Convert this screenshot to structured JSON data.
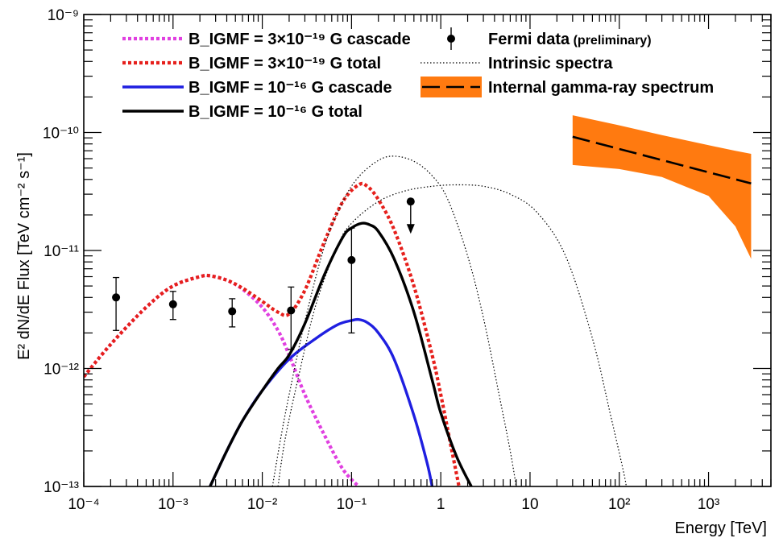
{
  "chart_data": {
    "type": "line",
    "xlabel": "Energy [TeV]",
    "ylabel": "E² dN/dE Flux [TeV cm⁻² s⁻¹]",
    "x_scale": "log",
    "y_scale": "log",
    "xlim": [
      0.0001,
      5000
    ],
    "ylim": [
      1e-13,
      1e-09
    ],
    "grid": false,
    "legend_position": "top",
    "x_tick_labels": [
      "10⁻⁴",
      "10⁻³",
      "10⁻²",
      "10⁻¹",
      "1",
      "10",
      "10²",
      "10³"
    ],
    "x_tick_values": [
      0.0001,
      0.001,
      0.01,
      0.1,
      1,
      10,
      100,
      1000
    ],
    "y_tick_labels": [
      "10⁻¹³",
      "10⁻¹²",
      "10⁻¹¹",
      "10⁻¹⁰",
      "10⁻⁹"
    ],
    "y_tick_values": [
      1e-13,
      1e-12,
      1e-11,
      1e-10,
      1e-09
    ],
    "legend": [
      {
        "label": "B_IGMF = 3×10⁻¹⁹ G cascade",
        "color": "#e040e0",
        "style": "dotted"
      },
      {
        "label": "B_IGMF = 3×10⁻¹⁹ G total",
        "color": "#e6201c",
        "style": "dotted"
      },
      {
        "label": "B_IGMF = 10⁻¹⁶ G cascade",
        "color": "#1f1fe0",
        "style": "solid"
      },
      {
        "label": "B_IGMF = 10⁻¹⁶ G total",
        "color": "#000000",
        "style": "solid"
      },
      {
        "label": "Fermi data",
        "sublabel": "(preliminary)",
        "color": "#000000",
        "style": "marker"
      },
      {
        "label": "Intrinsic spectra",
        "color": "#000000",
        "style": "fine-dotted"
      },
      {
        "label": "Internal gamma-ray spectrum",
        "color": "#000000",
        "band_color": "#ff7a10",
        "style": "dashed-band"
      }
    ],
    "series": [
      {
        "name": "B_IGMF = 3×10⁻¹⁹ G cascade",
        "color": "#e040e0",
        "style": "dotted",
        "x": [
          0.0001,
          0.0002,
          0.0005,
          0.001,
          0.002,
          0.0026,
          0.004,
          0.006,
          0.01,
          0.015,
          0.02,
          0.03,
          0.05,
          0.08,
          0.12
        ],
        "y": [
          8.5e-13,
          1.6e-12,
          3.3e-12,
          5e-12,
          6e-12,
          6.1e-12,
          5.6e-12,
          4.7e-12,
          3.3e-12,
          2.1e-12,
          1.3e-12,
          6e-13,
          2.7e-13,
          1.4e-13,
          1e-13
        ]
      },
      {
        "name": "B_IGMF = 3×10⁻¹⁹ G total",
        "color": "#e6201c",
        "style": "dotted",
        "x": [
          0.0001,
          0.0002,
          0.0005,
          0.001,
          0.002,
          0.0026,
          0.004,
          0.006,
          0.01,
          0.015,
          0.02,
          0.03,
          0.05,
          0.08,
          0.12,
          0.15,
          0.2,
          0.3,
          0.5,
          0.8,
          1.0,
          1.3,
          1.6
        ],
        "y": [
          8.5e-13,
          1.6e-12,
          3.3e-12,
          5e-12,
          6e-12,
          6.1e-12,
          5.6e-12,
          4.8e-12,
          3.7e-12,
          3e-12,
          2.9e-12,
          4.6e-12,
          1.2e-11,
          2.6e-11,
          3.6e-11,
          3.5e-11,
          2.7e-11,
          1.5e-11,
          5e-12,
          1.3e-12,
          6e-13,
          2.2e-13,
          1e-13
        ]
      },
      {
        "name": "B_IGMF = 10⁻¹⁶ G cascade",
        "color": "#1f1fe0",
        "style": "solid",
        "x": [
          0.0026,
          0.004,
          0.006,
          0.01,
          0.02,
          0.04,
          0.07,
          0.1,
          0.12,
          0.15,
          0.2,
          0.3,
          0.5,
          0.7,
          0.8
        ],
        "y": [
          1e-13,
          2e-13,
          3.6e-13,
          6.5e-13,
          1.2e-12,
          1.8e-12,
          2.35e-12,
          2.55e-12,
          2.6e-12,
          2.45e-12,
          2e-12,
          1.2e-12,
          4e-13,
          1.6e-13,
          1e-13
        ]
      },
      {
        "name": "B_IGMF = 10⁻¹⁶ G total",
        "color": "#000000",
        "style": "solid",
        "x": [
          0.0026,
          0.004,
          0.006,
          0.01,
          0.015,
          0.02,
          0.03,
          0.05,
          0.08,
          0.1,
          0.13,
          0.16,
          0.2,
          0.3,
          0.5,
          0.8,
          1.0,
          1.5,
          2.2
        ],
        "y": [
          1e-13,
          2e-13,
          3.6e-13,
          6.5e-13,
          1e-12,
          1.3e-12,
          2.4e-12,
          6.3e-12,
          1.3e-11,
          1.55e-11,
          1.7e-11,
          1.65e-11,
          1.45e-11,
          8.5e-12,
          3e-12,
          8e-13,
          4.2e-13,
          1.8e-13,
          1e-13
        ]
      },
      {
        "name": "Intrinsic spectra (soft)",
        "color": "#000000",
        "style": "fine-dotted",
        "x": [
          0.013,
          0.016,
          0.02,
          0.03,
          0.05,
          0.08,
          0.12,
          0.2,
          0.3,
          0.5,
          0.8,
          1.2,
          2.0,
          3.0,
          4.5,
          6.0,
          7.0
        ],
        "y": [
          1e-13,
          2.5e-13,
          6e-13,
          2.5e-12,
          1.1e-11,
          2.6e-11,
          4.2e-11,
          5.8e-11,
          6.3e-11,
          5.7e-11,
          4.3e-11,
          2.7e-11,
          9e-12,
          2.7e-12,
          6e-13,
          2e-13,
          1e-13
        ]
      },
      {
        "name": "Intrinsic spectra (hard)",
        "color": "#000000",
        "style": "fine-dotted",
        "x": [
          0.015,
          0.018,
          0.025,
          0.04,
          0.07,
          0.1,
          0.2,
          0.4,
          0.8,
          1.5,
          3.0,
          6.0,
          12,
          25,
          50,
          80,
          110,
          120
        ],
        "y": [
          1e-13,
          2.5e-13,
          8e-13,
          3.5e-12,
          1.1e-11,
          1.7e-11,
          2.6e-11,
          3.2e-11,
          3.5e-11,
          3.6e-11,
          3.5e-11,
          3e-11,
          2.1e-11,
          9e-12,
          1.8e-12,
          4e-13,
          1.4e-13,
          1e-13
        ]
      },
      {
        "name": "Internal gamma-ray spectrum",
        "color": "#000000",
        "style": "dashed",
        "x": [
          30,
          3000
        ],
        "y": [
          9.2e-11,
          3.7e-11
        ]
      }
    ],
    "band": {
      "name": "Internal gamma-ray spectrum band",
      "color": "#ff7a10",
      "x": [
        30,
        100,
        300,
        1000,
        2000,
        3000
      ],
      "upper": [
        1.4e-10,
        1.15e-10,
        9.5e-11,
        7.8e-11,
        7e-11,
        6.6e-11
      ],
      "lower": [
        5.3e-11,
        4.9e-11,
        4.2e-11,
        2.9e-11,
        1.6e-11,
        8.5e-12
      ]
    },
    "fermi_data": [
      {
        "x": 0.00023,
        "y": 4e-12,
        "ylo": 2.1e-12,
        "yhi": 5.9e-12
      },
      {
        "x": 0.001,
        "y": 3.5e-12,
        "ylo": 2.6e-12,
        "yhi": 4.5e-12
      },
      {
        "x": 0.0046,
        "y": 3.05e-12,
        "ylo": 2.25e-12,
        "yhi": 3.9e-12
      },
      {
        "x": 0.021,
        "y": 3.1e-12,
        "ylo": 1.45e-12,
        "yhi": 4.9e-12
      },
      {
        "x": 0.1,
        "y": 8.3e-12,
        "ylo": 2e-12,
        "yhi": 1.55e-11
      }
    ],
    "fermi_upper_limit": {
      "x": 0.46,
      "y": 2.6e-11
    }
  }
}
